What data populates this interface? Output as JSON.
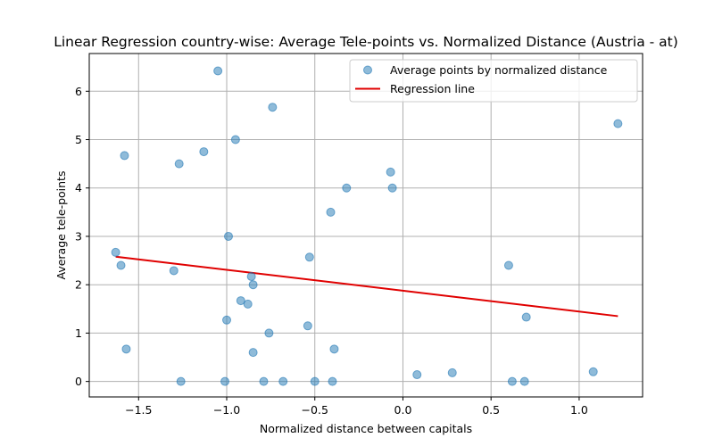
{
  "chart_data": {
    "type": "scatter",
    "title": "Linear Regression country-wise: Average Tele-points vs. Normalized Distance (Austria - at)",
    "xlabel": "Normalized distance between capitals",
    "ylabel": "Average tele-points",
    "xlim": [
      -1.78,
      1.36
    ],
    "ylim": [
      -0.32,
      6.78
    ],
    "xticks": [
      -1.5,
      -1.0,
      -0.5,
      0.0,
      0.5,
      1.0
    ],
    "xtick_labels": [
      "−1.5",
      "−1.0",
      "−0.5",
      "0.0",
      "0.5",
      "1.0"
    ],
    "yticks": [
      0,
      1,
      2,
      3,
      4,
      5,
      6
    ],
    "ytick_labels": [
      "0",
      "1",
      "2",
      "3",
      "4",
      "5",
      "6"
    ],
    "grid": true,
    "legend_position": "top-right",
    "series": [
      {
        "name": "Average points by normalized distance",
        "type": "scatter",
        "color": "#1f77b4",
        "points": [
          [
            -1.05,
            6.42
          ],
          [
            -0.74,
            5.67
          ],
          [
            1.22,
            5.33
          ],
          [
            -0.95,
            5.0
          ],
          [
            -1.58,
            4.67
          ],
          [
            -1.13,
            4.75
          ],
          [
            -1.27,
            4.5
          ],
          [
            -0.07,
            4.33
          ],
          [
            -0.32,
            4.0
          ],
          [
            -0.06,
            4.0
          ],
          [
            -0.41,
            3.5
          ],
          [
            -0.99,
            3.0
          ],
          [
            -1.63,
            2.67
          ],
          [
            -0.53,
            2.57
          ],
          [
            -1.6,
            2.4
          ],
          [
            0.6,
            2.4
          ],
          [
            -1.3,
            2.29
          ],
          [
            -0.86,
            2.17
          ],
          [
            -0.85,
            2.0
          ],
          [
            -0.92,
            1.67
          ],
          [
            -0.88,
            1.6
          ],
          [
            0.7,
            1.33
          ],
          [
            -1.0,
            1.27
          ],
          [
            -0.54,
            1.15
          ],
          [
            -0.76,
            1.0
          ],
          [
            -1.57,
            0.67
          ],
          [
            -0.39,
            0.67
          ],
          [
            -0.85,
            0.6
          ],
          [
            1.08,
            0.2
          ],
          [
            0.28,
            0.18
          ],
          [
            0.08,
            0.14
          ],
          [
            -1.26,
            0.0
          ],
          [
            -1.01,
            0.0
          ],
          [
            -0.79,
            0.0
          ],
          [
            -0.68,
            0.0
          ],
          [
            -0.5,
            0.0
          ],
          [
            -0.4,
            0.0
          ],
          [
            0.62,
            0.0
          ],
          [
            0.69,
            0.0
          ]
        ]
      },
      {
        "name": "Regression line",
        "type": "line",
        "color": "#e00000",
        "x": [
          -1.63,
          1.22
        ],
        "y": [
          2.58,
          1.35
        ]
      }
    ]
  }
}
